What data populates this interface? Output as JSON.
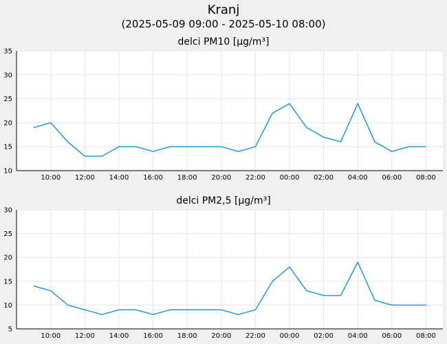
{
  "header": {
    "title": "Kranj",
    "subtitle": "(2025-05-09 09:00 - 2025-05-10 08:00)"
  },
  "style": {
    "line_color": "#1a8fd8",
    "background": "#f0f0f0",
    "plot_background": "#ffffff"
  },
  "chart_data": [
    {
      "type": "line",
      "title": "delci PM10 [µg/m³]",
      "xlabel": "",
      "ylabel": "",
      "x": [
        "09:00",
        "10:00",
        "11:00",
        "12:00",
        "13:00",
        "14:00",
        "15:00",
        "16:00",
        "17:00",
        "18:00",
        "19:00",
        "20:00",
        "21:00",
        "22:00",
        "23:00",
        "00:00",
        "01:00",
        "02:00",
        "03:00",
        "04:00",
        "05:00",
        "06:00",
        "07:00",
        "08:00"
      ],
      "x_tick_labels": [
        "10:00",
        "12:00",
        "14:00",
        "16:00",
        "18:00",
        "20:00",
        "22:00",
        "00:00",
        "02:00",
        "04:00",
        "06:00",
        "08:00"
      ],
      "series": [
        {
          "values": [
            19,
            20,
            16,
            13,
            13,
            15,
            15,
            14,
            15,
            15,
            15,
            15,
            14,
            15,
            22,
            24,
            19,
            17,
            16,
            24,
            16,
            14,
            15,
            15
          ]
        }
      ],
      "ylim": [
        10,
        35
      ],
      "y_ticks": [
        10,
        15,
        20,
        25,
        30,
        35
      ],
      "grid": true
    },
    {
      "type": "line",
      "title": "delci PM2,5 [µg/m³]",
      "xlabel": "",
      "ylabel": "",
      "x": [
        "09:00",
        "10:00",
        "11:00",
        "12:00",
        "13:00",
        "14:00",
        "15:00",
        "16:00",
        "17:00",
        "18:00",
        "19:00",
        "20:00",
        "21:00",
        "22:00",
        "23:00",
        "00:00",
        "01:00",
        "02:00",
        "03:00",
        "04:00",
        "05:00",
        "06:00",
        "07:00",
        "08:00"
      ],
      "x_tick_labels": [
        "10:00",
        "12:00",
        "14:00",
        "16:00",
        "18:00",
        "20:00",
        "22:00",
        "00:00",
        "02:00",
        "04:00",
        "06:00",
        "08:00"
      ],
      "series": [
        {
          "values": [
            14,
            13,
            10,
            9,
            8,
            9,
            9,
            8,
            9,
            9,
            9,
            9,
            8,
            9,
            15,
            18,
            13,
            12,
            12,
            19,
            11,
            10,
            10,
            10
          ]
        }
      ],
      "ylim": [
        5,
        30
      ],
      "y_ticks": [
        5,
        10,
        15,
        20,
        25,
        30
      ],
      "grid": true
    }
  ]
}
